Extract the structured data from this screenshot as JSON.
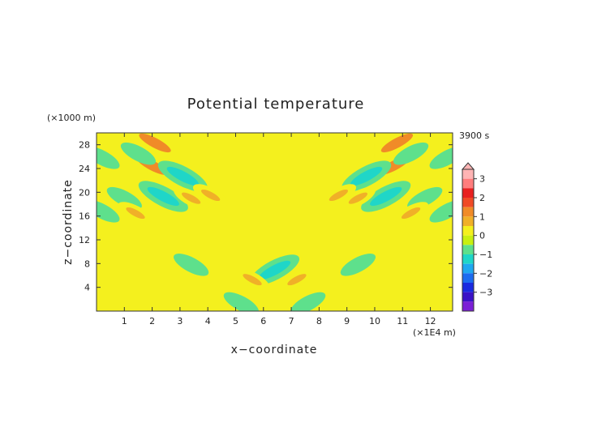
{
  "chart_data": {
    "type": "heatmap",
    "title": "Potential temperature",
    "xlabel": "x−coordinate",
    "ylabel": "z−coordinate",
    "x_unit": "(×1E4 m)",
    "y_unit": "(×1000 m)",
    "time_label": "3900 s",
    "xlim": [
      0,
      12.8
    ],
    "ylim": [
      0,
      30
    ],
    "x_ticks": [
      1,
      2,
      3,
      4,
      5,
      6,
      7,
      8,
      9,
      10,
      11,
      12
    ],
    "y_ticks": [
      4,
      8,
      12,
      16,
      20,
      24,
      28
    ],
    "grid": false,
    "colorbar": {
      "ticks": [
        "3",
        "2",
        "1",
        "0",
        "−1",
        "−2",
        "−3"
      ],
      "levels": [
        -3.5,
        -3,
        -2.5,
        -2,
        -1.5,
        -1,
        -0.5,
        0,
        0.5,
        1,
        1.5,
        2,
        2.5,
        3,
        3.5
      ],
      "colors": [
        "#7b1fd6",
        "#3a12c6",
        "#1a2ae0",
        "#1c6cf0",
        "#1fa8f0",
        "#1fd6c8",
        "#5ee08c",
        "#c8f010",
        "#f4f01e",
        "#f0b028",
        "#f08b28",
        "#f04a26",
        "#e82020",
        "#ff7d7d",
        "#ffb4b4"
      ],
      "extend_top": true
    },
    "background_value": 0.1,
    "features": [
      {
        "x": 2.0,
        "z": 24.5,
        "value": 1.2
      },
      {
        "x": 2.4,
        "z": 19.3,
        "value": -1.2
      },
      {
        "x": 2.1,
        "z": 28.3,
        "value": 1.1
      },
      {
        "x": 3.1,
        "z": 22.7,
        "value": -1.1
      },
      {
        "x": 3.4,
        "z": 19.0,
        "value": 0.9
      },
      {
        "x": 1.5,
        "z": 26.5,
        "value": -0.8
      },
      {
        "x": 1.0,
        "z": 19.0,
        "value": -0.8
      },
      {
        "x": 1.4,
        "z": 16.5,
        "value": 0.8
      },
      {
        "x": 4.1,
        "z": 19.5,
        "value": 0.8
      },
      {
        "x": 0.2,
        "z": 25.8,
        "value": -0.8
      },
      {
        "x": 0.2,
        "z": 16.8,
        "value": -0.8
      },
      {
        "x": 10.7,
        "z": 24.5,
        "value": 1.2
      },
      {
        "x": 10.4,
        "z": 19.3,
        "value": -1.2
      },
      {
        "x": 10.8,
        "z": 28.3,
        "value": 1.1
      },
      {
        "x": 9.7,
        "z": 22.7,
        "value": -1.1
      },
      {
        "x": 9.4,
        "z": 19.0,
        "value": 0.9
      },
      {
        "x": 11.3,
        "z": 26.5,
        "value": -0.8
      },
      {
        "x": 11.8,
        "z": 19.0,
        "value": -0.8
      },
      {
        "x": 11.3,
        "z": 16.5,
        "value": 0.8
      },
      {
        "x": 8.7,
        "z": 19.5,
        "value": 0.8
      },
      {
        "x": 12.6,
        "z": 25.8,
        "value": -0.8
      },
      {
        "x": 12.6,
        "z": 16.8,
        "value": -0.8
      },
      {
        "x": 6.4,
        "z": 6.9,
        "value": -1.4
      },
      {
        "x": 3.4,
        "z": 7.8,
        "value": -0.8
      },
      {
        "x": 9.4,
        "z": 7.8,
        "value": -0.8
      },
      {
        "x": 5.2,
        "z": 1.3,
        "value": -0.7
      },
      {
        "x": 7.6,
        "z": 1.3,
        "value": -0.7
      },
      {
        "x": 5.6,
        "z": 5.3,
        "value": 0.7
      },
      {
        "x": 7.2,
        "z": 5.3,
        "value": 0.7
      }
    ]
  }
}
